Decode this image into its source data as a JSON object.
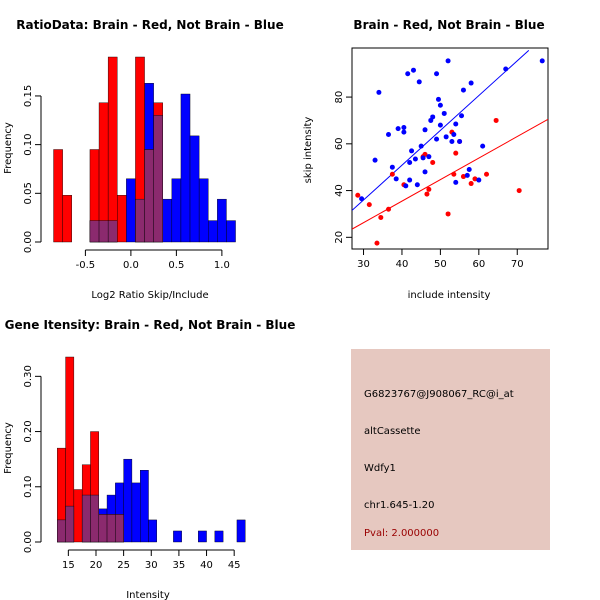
{
  "colors": {
    "red": "#ff0000",
    "blue": "#0000ff",
    "overlap": "#8b2a6e",
    "brain_point": "#ff0000",
    "not_brain_point": "#0000ff",
    "info_bg": "#e6c8c0",
    "pval": "#990000"
  },
  "chart_data": [
    {
      "type": "bar",
      "title": "RatioData: Brain - Red, Not Brain - Blue",
      "xlabel": "Log2 Ratio Skip/Include",
      "ylabel": "Frequency",
      "xlim": [
        -0.9,
        1.32
      ],
      "ylim": [
        0,
        0.19
      ],
      "xticks": [
        -0.5,
        0.0,
        0.5,
        1.0
      ],
      "xtick_labels": [
        "-0.5",
        "0.0",
        "0.5",
        "1.0"
      ],
      "yticks": [
        0.0,
        0.05,
        0.1,
        0.15
      ],
      "ytick_labels": [
        "0.00",
        "0.05",
        "0.10",
        "0.15"
      ],
      "series": [
        {
          "name": "Brain",
          "color": "red",
          "bins": [
            [
              -0.85,
              -0.75,
              0.095
            ],
            [
              -0.75,
              -0.65,
              0.048
            ],
            [
              -0.45,
              -0.35,
              0.095
            ],
            [
              -0.35,
              -0.25,
              0.143
            ],
            [
              -0.25,
              -0.15,
              0.19
            ],
            [
              -0.15,
              -0.05,
              0.048
            ],
            [
              0.05,
              0.15,
              0.19
            ],
            [
              0.15,
              0.25,
              0.095
            ],
            [
              0.25,
              0.35,
              0.143
            ]
          ]
        },
        {
          "name": "Not Brain",
          "color": "blue",
          "bins": [
            [
              -0.45,
              -0.35,
              0.022
            ],
            [
              -0.35,
              -0.25,
              0.022
            ],
            [
              -0.25,
              -0.15,
              0.022
            ],
            [
              -0.05,
              0.05,
              0.065
            ],
            [
              0.05,
              0.15,
              0.044
            ],
            [
              0.15,
              0.25,
              0.163
            ],
            [
              0.25,
              0.35,
              0.13
            ],
            [
              0.35,
              0.45,
              0.044
            ],
            [
              0.45,
              0.55,
              0.065
            ],
            [
              0.55,
              0.65,
              0.152
            ],
            [
              0.65,
              0.75,
              0.109
            ],
            [
              0.75,
              0.85,
              0.065
            ],
            [
              0.85,
              0.95,
              0.022
            ],
            [
              0.95,
              1.05,
              0.044
            ],
            [
              1.05,
              1.15,
              0.022
            ]
          ]
        }
      ]
    },
    {
      "type": "scatter",
      "title": "Brain - Red, Not Brain - Blue",
      "xlabel": "include intensity",
      "ylabel": "skip intensity",
      "xlim": [
        27,
        78
      ],
      "ylim": [
        15,
        101
      ],
      "xticks": [
        30,
        40,
        50,
        60,
        70
      ],
      "xtick_labels": [
        "30",
        "40",
        "50",
        "60",
        "70"
      ],
      "yticks": [
        20,
        40,
        60,
        80
      ],
      "ytick_labels": [
        "20",
        "40",
        "60",
        "80"
      ],
      "fit_lines": [
        {
          "name": "Brain",
          "color": "red",
          "x": [
            27,
            78
          ],
          "y": [
            23.5,
            70.5
          ]
        },
        {
          "name": "Not Brain",
          "color": "blue",
          "x": [
            27,
            73
          ],
          "y": [
            31.5,
            100
          ]
        }
      ],
      "series": [
        {
          "name": "Brain",
          "color": "red",
          "points": [
            [
              28.5,
              38
            ],
            [
              31.5,
              34
            ],
            [
              33.5,
              17.5
            ],
            [
              34.5,
              28.5
            ],
            [
              36.5,
              32
            ],
            [
              37.5,
              47
            ],
            [
              40.5,
              42.5
            ],
            [
              45.5,
              54.5
            ],
            [
              46,
              55.5
            ],
            [
              46.5,
              38.5
            ],
            [
              47,
              40.5
            ],
            [
              48,
              52
            ],
            [
              52,
              30
            ],
            [
              53,
              65
            ],
            [
              53.5,
              47
            ],
            [
              54,
              56
            ],
            [
              55,
              61
            ],
            [
              56,
              46
            ],
            [
              58,
              43
            ],
            [
              59,
              45
            ],
            [
              62,
              47
            ],
            [
              64.5,
              70
            ],
            [
              70.5,
              40
            ]
          ]
        },
        {
          "name": "Not Brain",
          "color": "blue",
          "points": [
            [
              29.5,
              36.5
            ],
            [
              33,
              53
            ],
            [
              34,
              82
            ],
            [
              36.5,
              64
            ],
            [
              37.5,
              50
            ],
            [
              38.5,
              45
            ],
            [
              39,
              66.5
            ],
            [
              40.5,
              65
            ],
            [
              40.5,
              67
            ],
            [
              41,
              42
            ],
            [
              41.5,
              90
            ],
            [
              42,
              52
            ],
            [
              42,
              44.5
            ],
            [
              42.5,
              57
            ],
            [
              43,
              91.5
            ],
            [
              43.5,
              53.5
            ],
            [
              44,
              42.5
            ],
            [
              44.5,
              86.5
            ],
            [
              45,
              59
            ],
            [
              45.5,
              54
            ],
            [
              46,
              66
            ],
            [
              46,
              48
            ],
            [
              47,
              54.5
            ],
            [
              47.5,
              70
            ],
            [
              48,
              71.5
            ],
            [
              49,
              90
            ],
            [
              49,
              62
            ],
            [
              49.5,
              79
            ],
            [
              50,
              68
            ],
            [
              50,
              76.5
            ],
            [
              51,
              73
            ],
            [
              51.5,
              63
            ],
            [
              52,
              95.5
            ],
            [
              53,
              61
            ],
            [
              53.5,
              64
            ],
            [
              54,
              68.5
            ],
            [
              54,
              43.5
            ],
            [
              55,
              61
            ],
            [
              55.5,
              72
            ],
            [
              56,
              83
            ],
            [
              57,
              46.5
            ],
            [
              57.5,
              49
            ],
            [
              58,
              86
            ],
            [
              60,
              44.5
            ],
            [
              61,
              59
            ],
            [
              67,
              92
            ],
            [
              76.5,
              95.5
            ]
          ]
        }
      ]
    },
    {
      "type": "bar",
      "title": "Gene Itensity: Brain - Red, Not Brain - Blue",
      "xlabel": "Intensity",
      "ylabel": "Frequency",
      "xlim": [
        11.5,
        47.5
      ],
      "ylim": [
        0,
        0.335
      ],
      "xticks": [
        15,
        20,
        25,
        30,
        35,
        40,
        45
      ],
      "xtick_labels": [
        "15",
        "20",
        "25",
        "30",
        "35",
        "40",
        "45"
      ],
      "yticks": [
        0.0,
        0.1,
        0.2,
        0.3
      ],
      "ytick_labels": [
        "0.00",
        "0.10",
        "0.20",
        "0.30"
      ],
      "series": [
        {
          "name": "Brain",
          "color": "red",
          "bins": [
            [
              13,
              14.5,
              0.17
            ],
            [
              14.5,
              16,
              0.335
            ],
            [
              16,
              17.5,
              0.095
            ],
            [
              17.5,
              19,
              0.14
            ],
            [
              19,
              20.5,
              0.2
            ],
            [
              20.5,
              22,
              0.05
            ],
            [
              22,
              23.5,
              0.05
            ],
            [
              23.5,
              25,
              0.05
            ]
          ]
        },
        {
          "name": "Not Brain",
          "color": "blue",
          "bins": [
            [
              13,
              14.5,
              0.04
            ],
            [
              14.5,
              16,
              0.065
            ],
            [
              17.5,
              19,
              0.085
            ],
            [
              19,
              20.5,
              0.085
            ],
            [
              20.5,
              22,
              0.06
            ],
            [
              22,
              23.5,
              0.085
            ],
            [
              23.5,
              25,
              0.107
            ],
            [
              25,
              26.5,
              0.15
            ],
            [
              26.5,
              28,
              0.107
            ],
            [
              28,
              29.5,
              0.13
            ],
            [
              29.5,
              31,
              0.04
            ],
            [
              34,
              35.5,
              0.02
            ],
            [
              38.5,
              40,
              0.02
            ],
            [
              41.5,
              43,
              0.02
            ],
            [
              45.5,
              47,
              0.04
            ]
          ]
        }
      ]
    }
  ],
  "info_panel": {
    "probe_id": "G6823767@J908067_RC@i_at",
    "event_type": "altCassette",
    "gene": "Wdfy1",
    "location": "chr1.645-1.20",
    "pval": "Pval: 2.000000"
  }
}
